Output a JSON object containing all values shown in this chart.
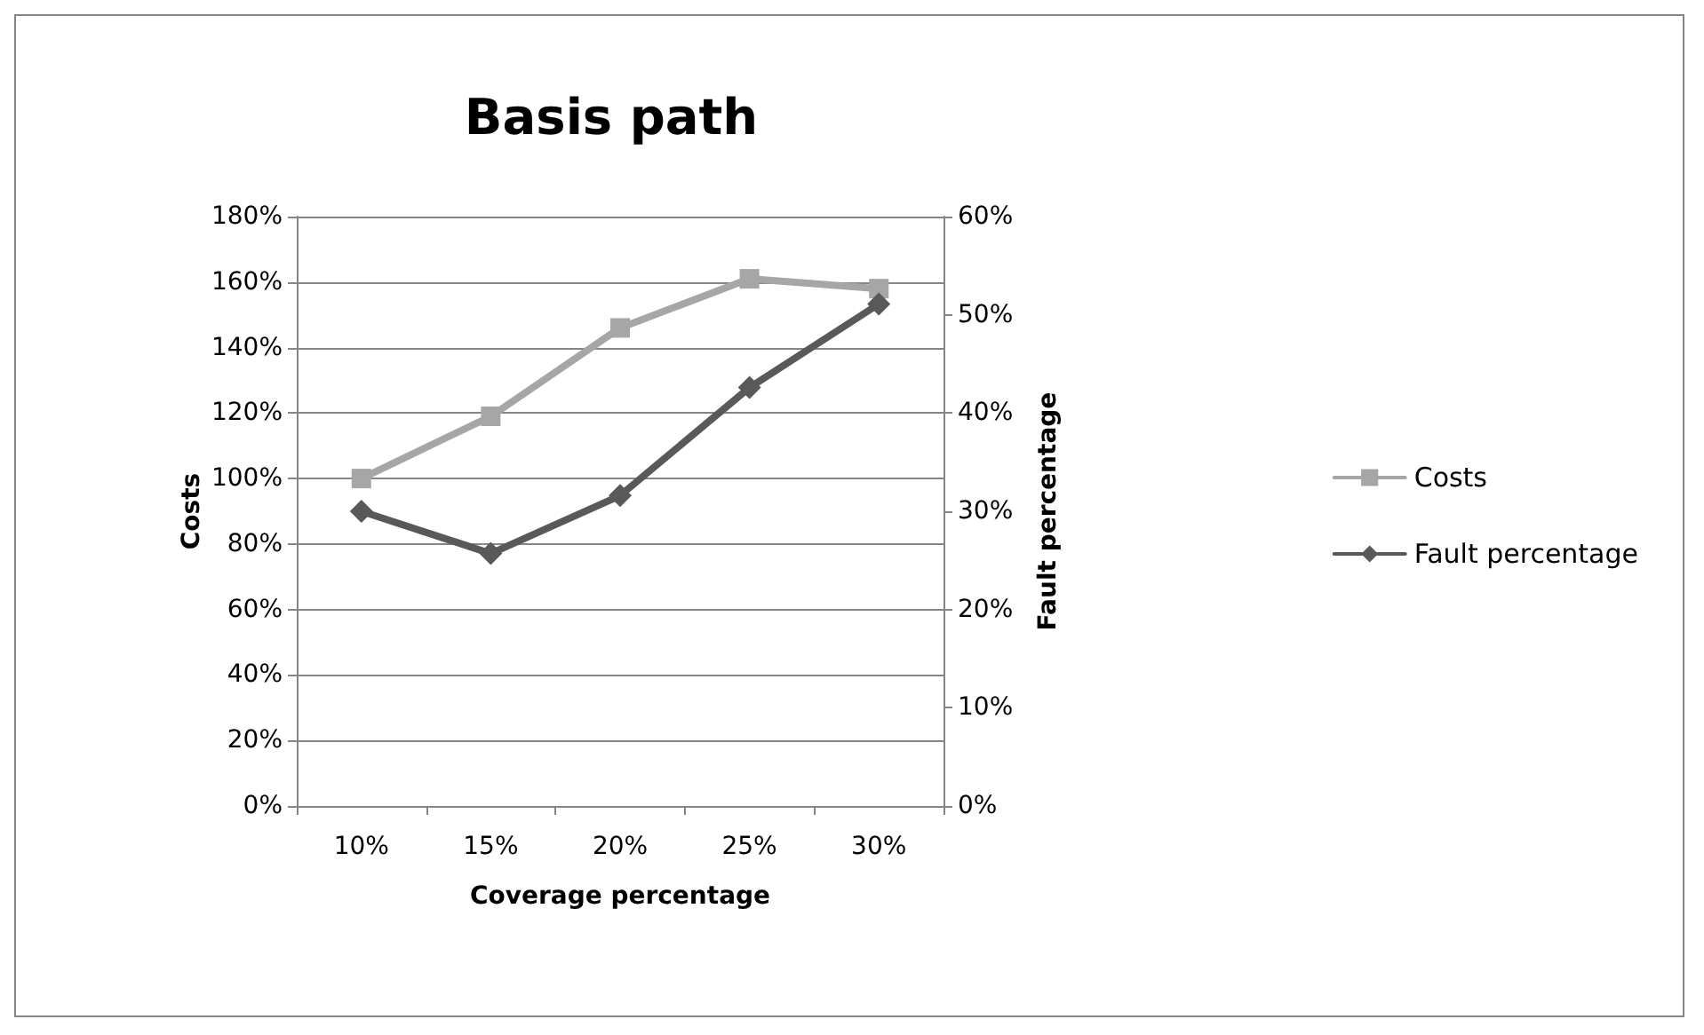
{
  "chart_data": {
    "type": "line",
    "title": "Basis path",
    "xlabel": "Coverage percentage",
    "ylabel": "Costs",
    "y2label": "Fault percentage",
    "categories": [
      "10%",
      "15%",
      "20%",
      "25%",
      "30%"
    ],
    "series": [
      {
        "name": "Costs",
        "color": "#a6a6a6",
        "marker": "square",
        "values": [
          100,
          119,
          146,
          161,
          158
        ]
      },
      {
        "name": "Fault percentage",
        "color": "#595959",
        "marker": "diamond",
        "axis": "y2",
        "values": [
          30,
          25.7,
          31.6,
          42.6,
          51.1
        ]
      }
    ],
    "ylim": [
      0,
      180
    ],
    "yticks": [
      {
        "value": 0,
        "label": "0%"
      },
      {
        "value": 20,
        "label": "20%"
      },
      {
        "value": 40,
        "label": "40%"
      },
      {
        "value": 60,
        "label": "60%"
      },
      {
        "value": 80,
        "label": "80%"
      },
      {
        "value": 100,
        "label": "100%"
      },
      {
        "value": 120,
        "label": "120%"
      },
      {
        "value": 140,
        "label": "140%"
      },
      {
        "value": 160,
        "label": "160%"
      },
      {
        "value": 180,
        "label": "180%"
      }
    ],
    "y2lim": [
      0,
      60
    ],
    "y2ticks": [
      {
        "value": 0,
        "label": "0%"
      },
      {
        "value": 10,
        "label": "10%"
      },
      {
        "value": 20,
        "label": "20%"
      },
      {
        "value": 30,
        "label": "30%"
      },
      {
        "value": 40,
        "label": "40%"
      },
      {
        "value": 50,
        "label": "50%"
      },
      {
        "value": 60,
        "label": "60%"
      }
    ],
    "grid": "y",
    "legend": "right",
    "line_style": "solid"
  }
}
